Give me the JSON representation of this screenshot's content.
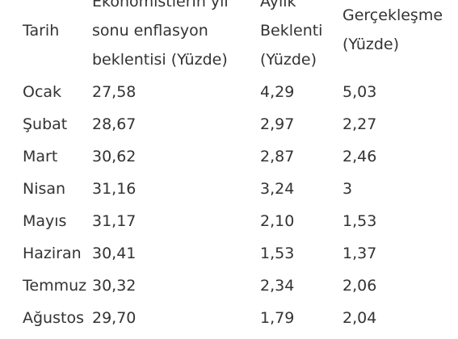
{
  "table": {
    "headers": [
      {
        "lines": [
          "Tarih"
        ]
      },
      {
        "lines": [
          "Ekonomistlerin yıl",
          "sonu enflasyon",
          "beklentisi (Yüzde)"
        ]
      },
      {
        "lines": [
          "Aylık",
          "Beklenti",
          "(Yüzde)"
        ]
      },
      {
        "lines": [
          "Gerçekleşme",
          "(Yüzde)"
        ]
      }
    ],
    "rows": [
      [
        "Ocak",
        "27,58",
        "4,29",
        "5,03"
      ],
      [
        "Şubat",
        "28,67",
        "2,97",
        "2,27"
      ],
      [
        "Mart",
        "30,62",
        "2,87",
        "2,46"
      ],
      [
        "Nisan",
        "31,16",
        "3,24",
        "3"
      ],
      [
        "Mayıs",
        "31,17",
        "2,10",
        "1,53"
      ],
      [
        "Haziran",
        "30,41",
        "1,53",
        "1,37"
      ],
      [
        "Temmuz",
        "30,32",
        "2,34",
        "2,06"
      ],
      [
        "Ağustos",
        "29,70",
        "1,79",
        "2,04"
      ]
    ]
  }
}
